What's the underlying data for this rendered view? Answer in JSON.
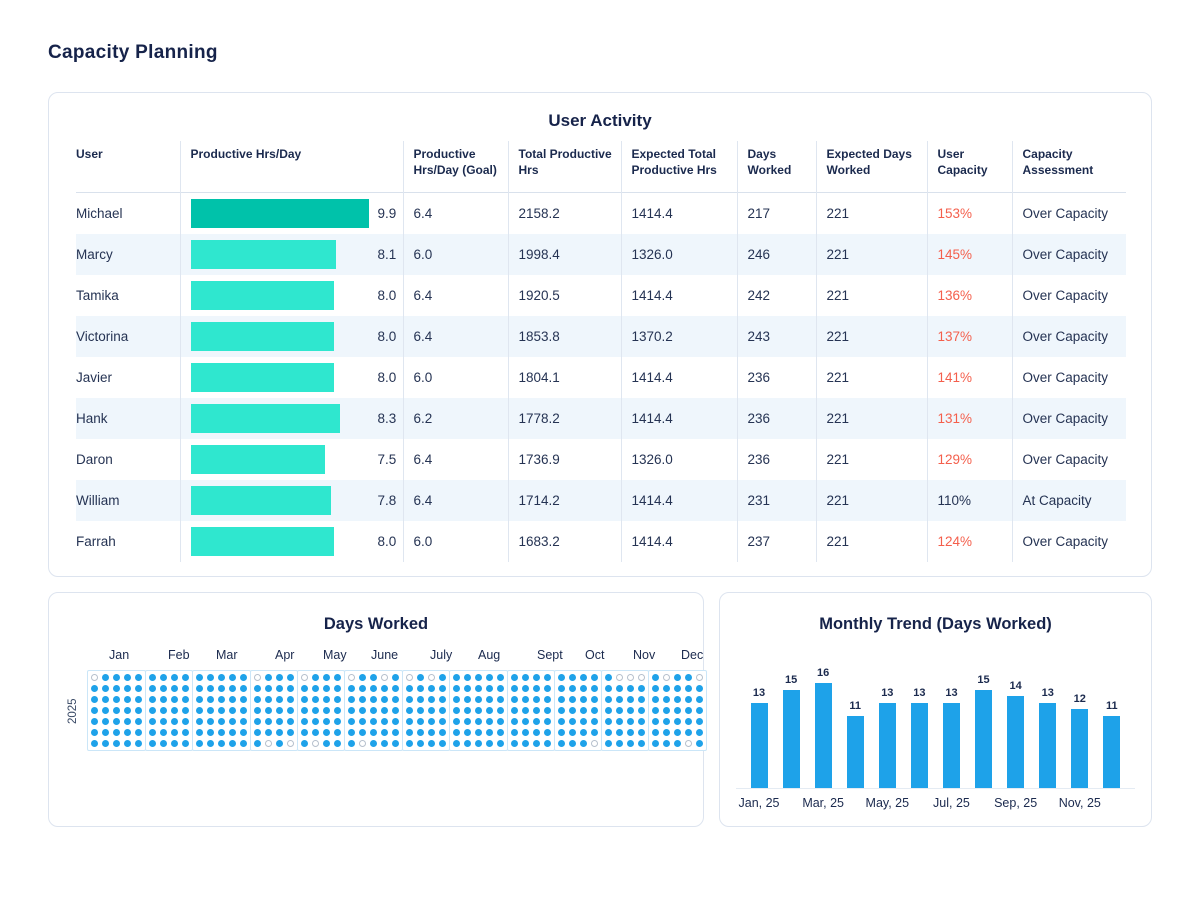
{
  "page": {
    "title": "Capacity Planning"
  },
  "colors": {
    "navy": "#16234A",
    "text": "#253353",
    "red": "#F45F4C",
    "teal": "#2FE7CF",
    "teal_dark": "#00C2AA",
    "blue": "#1EA2E9",
    "row_alt": "#EFF6FC",
    "card_border": "#DDE4EF",
    "calendar_outline": "#CBE6F8",
    "hollow_dot_ring": "#B6C0CD"
  },
  "user_activity": {
    "title": "User Activity",
    "columns": [
      "User",
      "Productive Hrs/Day",
      "Productive Hrs/Day (Goal)",
      "Total Productive Hrs",
      "Expected Total Productive Hrs",
      "Days Worked",
      "Expected Days Worked",
      "User Capacity",
      "Capacity Assessment"
    ],
    "bar_scale_max": 9.9,
    "rows": [
      {
        "user": "Michael",
        "hrs_day": "9.9",
        "goal": "6.4",
        "total": "2158.2",
        "expected_total": "1414.4",
        "days": "217",
        "expected_days": "221",
        "capacity": "153%",
        "over": true,
        "assessment": "Over Capacity",
        "highlight": true
      },
      {
        "user": "Marcy",
        "hrs_day": "8.1",
        "goal": "6.0",
        "total": "1998.4",
        "expected_total": "1326.0",
        "days": "246",
        "expected_days": "221",
        "capacity": "145%",
        "over": true,
        "assessment": "Over Capacity",
        "highlight": false
      },
      {
        "user": "Tamika",
        "hrs_day": "8.0",
        "goal": "6.4",
        "total": "1920.5",
        "expected_total": "1414.4",
        "days": "242",
        "expected_days": "221",
        "capacity": "136%",
        "over": true,
        "assessment": "Over Capacity",
        "highlight": false
      },
      {
        "user": "Victorina",
        "hrs_day": "8.0",
        "goal": "6.4",
        "total": "1853.8",
        "expected_total": "1370.2",
        "days": "243",
        "expected_days": "221",
        "capacity": "137%",
        "over": true,
        "assessment": "Over Capacity",
        "highlight": false
      },
      {
        "user": "Javier",
        "hrs_day": "8.0",
        "goal": "6.0",
        "total": "1804.1",
        "expected_total": "1414.4",
        "days": "236",
        "expected_days": "221",
        "capacity": "141%",
        "over": true,
        "assessment": "Over Capacity",
        "highlight": false
      },
      {
        "user": "Hank",
        "hrs_day": "8.3",
        "goal": "6.2",
        "total": "1778.2",
        "expected_total": "1414.4",
        "days": "236",
        "expected_days": "221",
        "capacity": "131%",
        "over": true,
        "assessment": "Over Capacity",
        "highlight": false
      },
      {
        "user": "Daron",
        "hrs_day": "7.5",
        "goal": "6.4",
        "total": "1736.9",
        "expected_total": "1326.0",
        "days": "236",
        "expected_days": "221",
        "capacity": "129%",
        "over": true,
        "assessment": "Over Capacity",
        "highlight": false
      },
      {
        "user": "William",
        "hrs_day": "7.8",
        "goal": "6.4",
        "total": "1714.2",
        "expected_total": "1414.4",
        "days": "231",
        "expected_days": "221",
        "capacity": "110%",
        "over": false,
        "assessment": "At Capacity",
        "highlight": false
      },
      {
        "user": "Farrah",
        "hrs_day": "8.0",
        "goal": "6.0",
        "total": "1683.2",
        "expected_total": "1414.4",
        "days": "237",
        "expected_days": "221",
        "capacity": "124%",
        "over": true,
        "assessment": "Over Capacity",
        "highlight": false
      }
    ]
  },
  "days_worked": {
    "title": "Days Worked",
    "year": "2025",
    "months": [
      {
        "label": "Jan",
        "weeks": [
          "offffff",
          "fffffff",
          "fffffff",
          "fffffff",
          "fffffff"
        ]
      },
      {
        "label": "Feb",
        "weeks": [
          "fffffff",
          "fffffff",
          "fffffff",
          "fffffff"
        ]
      },
      {
        "label": "Mar",
        "weeks": [
          "fffffff",
          "fffffff",
          "fffffff",
          "fffffff",
          "fffffff"
        ]
      },
      {
        "label": "Apr",
        "weeks": [
          "offffff",
          "ffffffo",
          "fffffff",
          "ffffffo"
        ]
      },
      {
        "label": "May",
        "weeks": [
          "offffff",
          "ffffffo",
          "fffffff",
          "fffffff"
        ]
      },
      {
        "label": "June",
        "weeks": [
          "offffff",
          "ffffffo",
          "fffffff",
          "offffff",
          "fffffff"
        ]
      },
      {
        "label": "July",
        "weeks": [
          "offffff",
          "fffffff",
          "offffff",
          "fffffff"
        ]
      },
      {
        "label": "Aug",
        "weeks": [
          "fffffff",
          "fffffff",
          "fffffff",
          "fffffff",
          "fffffff"
        ]
      },
      {
        "label": "Sept",
        "weeks": [
          "fffffff",
          "fffffff",
          "fffffff",
          "fffffff"
        ]
      },
      {
        "label": "Oct",
        "weeks": [
          "fffffff",
          "fffffff",
          "fffffff",
          "ffffffo"
        ]
      },
      {
        "label": "Nov",
        "weeks": [
          "fffffff",
          "offffff",
          "offffff",
          "offffff"
        ]
      },
      {
        "label": "Dec",
        "weeks": [
          "fffffff",
          "offffff",
          "fffffff",
          "ffffffo",
          "offffff"
        ]
      }
    ]
  },
  "monthly_trend": {
    "title": "Monthly Trend (Days Worked)",
    "y_max": 16,
    "values": [
      13,
      15,
      16,
      11,
      13,
      13,
      13,
      15,
      14,
      13,
      12,
      11
    ],
    "bar_labels": [
      "13",
      "15",
      "16",
      "11",
      "13",
      "13",
      "13",
      "15",
      "14",
      "13",
      "12",
      "11"
    ],
    "x_labels": [
      "Jan, 25",
      "",
      "Mar, 25",
      "",
      "May, 25",
      "",
      "Jul, 25",
      "",
      "Sep, 25",
      "",
      "Nov, 25",
      ""
    ]
  },
  "chart_data": [
    {
      "type": "table",
      "title": "User Activity",
      "columns": [
        "User",
        "Productive Hrs/Day",
        "Productive Hrs/Day (Goal)",
        "Total Productive Hrs",
        "Expected Total Productive Hrs",
        "Days Worked",
        "Expected Days Worked",
        "User Capacity",
        "Capacity Assessment"
      ],
      "rows": [
        [
          "Michael",
          "9.9",
          "6.4",
          "2158.2",
          "1414.4",
          "217",
          "221",
          "153%",
          "Over Capacity"
        ],
        [
          "Marcy",
          "8.1",
          "6.0",
          "1998.4",
          "1326.0",
          "246",
          "221",
          "145%",
          "Over Capacity"
        ],
        [
          "Tamika",
          "8.0",
          "6.4",
          "1920.5",
          "1414.4",
          "242",
          "221",
          "136%",
          "Over Capacity"
        ],
        [
          "Victorina",
          "8.0",
          "6.4",
          "1853.8",
          "1370.2",
          "243",
          "221",
          "137%",
          "Over Capacity"
        ],
        [
          "Javier",
          "8.0",
          "6.0",
          "1804.1",
          "1414.4",
          "236",
          "221",
          "141%",
          "Over Capacity"
        ],
        [
          "Hank",
          "8.3",
          "6.2",
          "1778.2",
          "1414.4",
          "236",
          "221",
          "131%",
          "Over Capacity"
        ],
        [
          "Daron",
          "7.5",
          "6.4",
          "1736.9",
          "1326.0",
          "236",
          "221",
          "129%",
          "Over Capacity"
        ],
        [
          "William",
          "7.8",
          "6.4",
          "1714.2",
          "1414.4",
          "231",
          "221",
          "110%",
          "At Capacity"
        ],
        [
          "Farrah",
          "8.0",
          "6.0",
          "1683.2",
          "1414.4",
          "237",
          "221",
          "124%",
          "Over Capacity"
        ]
      ]
    },
    {
      "type": "heatmap",
      "title": "Days Worked",
      "y_labels": [
        "2025"
      ],
      "x_labels": [
        "Jan",
        "Feb",
        "Mar",
        "Apr",
        "May",
        "June",
        "July",
        "Aug",
        "Sept",
        "Oct",
        "Nov",
        "Dec"
      ],
      "legend": "dot calendar: 53 week columns x 7 day rows; filled blue dot = worked day, hollow dot = not worked",
      "grid": "off"
    },
    {
      "type": "bar",
      "title": "Monthly Trend (Days Worked)",
      "categories": [
        "Jan, 25",
        "Feb, 25",
        "Mar, 25",
        "Apr, 25",
        "May, 25",
        "Jun, 25",
        "Jul, 25",
        "Aug, 25",
        "Sep, 25",
        "Oct, 25",
        "Nov, 25",
        "Dec, 25"
      ],
      "values": [
        13,
        15,
        16,
        11,
        13,
        13,
        13,
        15,
        14,
        13,
        12,
        11
      ],
      "xlabel": "",
      "ylabel": "",
      "ylim": [
        0,
        16
      ],
      "x_tick_labels_shown": [
        "Jan, 25",
        "Mar, 25",
        "May, 25",
        "Jul, 25",
        "Sep, 25",
        "Nov, 25"
      ],
      "grid": "off",
      "data_labels": true,
      "legend_position": "none"
    }
  ]
}
